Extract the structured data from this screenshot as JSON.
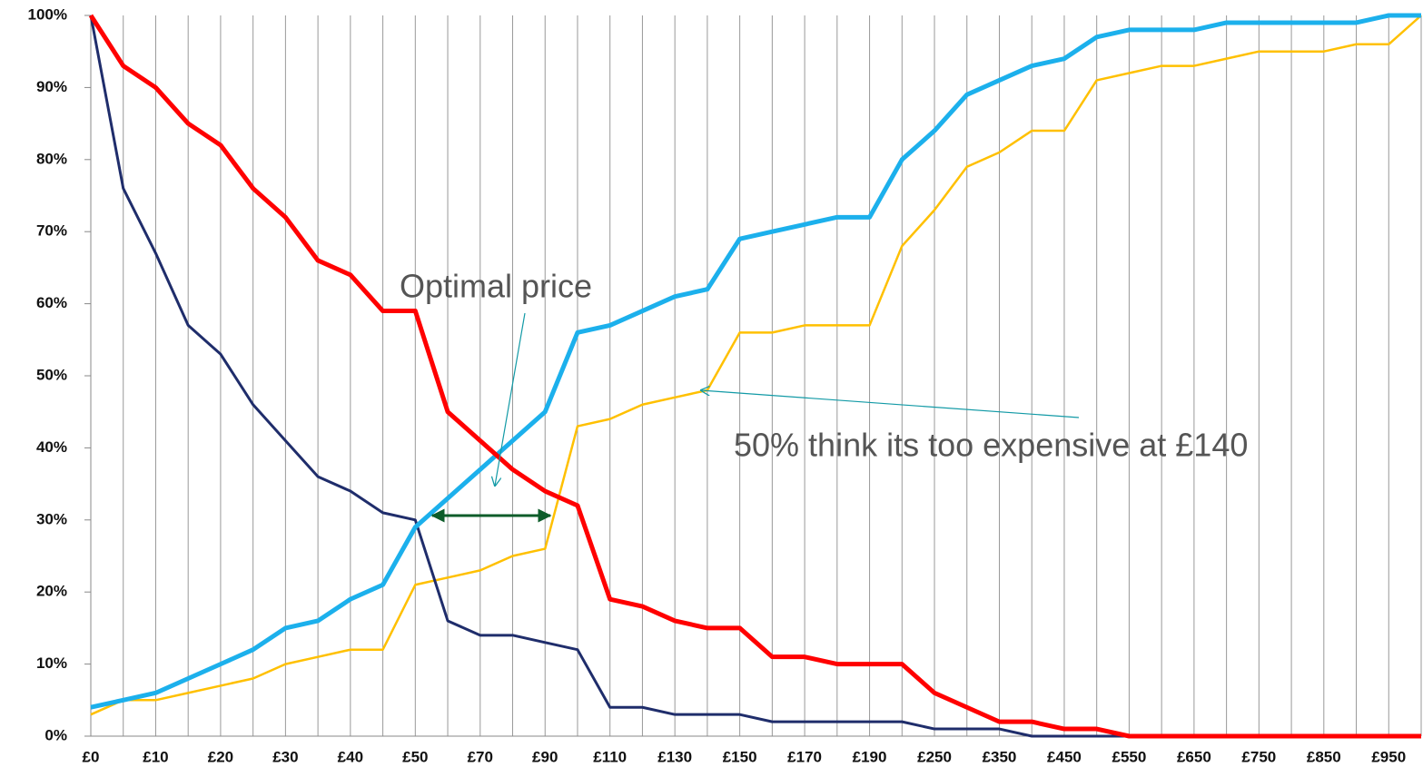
{
  "chart_data": {
    "type": "line",
    "categories": [
      "£0",
      null,
      "£10",
      null,
      "£20",
      null,
      "£30",
      null,
      "£40",
      null,
      "£50",
      null,
      "£70",
      null,
      "£90",
      null,
      "£110",
      null,
      "£130",
      null,
      "£150",
      null,
      "£170",
      null,
      "£190",
      null,
      "£250",
      null,
      "£350",
      null,
      "£450",
      null,
      "£550",
      null,
      "£650",
      null,
      "£750",
      null,
      "£850",
      null,
      "£950",
      null
    ],
    "series": [
      {
        "color": "#ffc000",
        "values": [
          3,
          5,
          5,
          6,
          7,
          8,
          10,
          11,
          12,
          12,
          21,
          22,
          23,
          25,
          26,
          43,
          44,
          46,
          47,
          48,
          56,
          56,
          57,
          57,
          57,
          68,
          73,
          79,
          81,
          84,
          84,
          91,
          92,
          93,
          93,
          94,
          95,
          95,
          95,
          96,
          96,
          100
        ]
      },
      {
        "color": "#1f2d6b",
        "values": [
          100,
          76,
          67,
          57,
          53,
          46,
          41,
          36,
          34,
          31,
          30,
          16,
          14,
          14,
          13,
          12,
          4,
          4,
          3,
          3,
          3,
          2,
          2,
          2,
          2,
          2,
          1,
          1,
          1,
          0,
          0,
          0,
          0,
          0,
          0,
          0,
          0,
          0,
          0,
          0,
          0,
          0
        ]
      },
      {
        "color": "#1cb0ec",
        "values": [
          4,
          5,
          6,
          8,
          10,
          12,
          15,
          16,
          19,
          21,
          29,
          33,
          37,
          41,
          45,
          56,
          57,
          59,
          61,
          62,
          69,
          70,
          71,
          72,
          72,
          80,
          84,
          89,
          91,
          93,
          94,
          97,
          98,
          98,
          98,
          99,
          99,
          99,
          99,
          99,
          100,
          100
        ]
      },
      {
        "color": "#ff0000",
        "values": [
          100,
          93,
          90,
          85,
          82,
          76,
          72,
          66,
          64,
          59,
          59,
          45,
          41,
          37,
          34,
          32,
          19,
          18,
          16,
          15,
          15,
          11,
          11,
          10,
          10,
          10,
          6,
          4,
          2,
          2,
          1,
          1,
          0,
          0,
          0,
          0,
          0,
          0,
          0,
          0,
          0,
          0
        ]
      }
    ],
    "ylim": [
      0,
      100
    ],
    "yticks": [
      {
        "value": 0,
        "label": "0%"
      },
      {
        "value": 10,
        "label": "10%"
      },
      {
        "value": 20,
        "label": "20%"
      },
      {
        "value": 30,
        "label": "30%"
      },
      {
        "value": 40,
        "label": "40%"
      },
      {
        "value": 50,
        "label": "50%"
      },
      {
        "value": 60,
        "label": "60%"
      },
      {
        "value": 70,
        "label": "70%"
      },
      {
        "value": 80,
        "label": "80%"
      },
      {
        "value": 90,
        "label": "90%"
      },
      {
        "value": 100,
        "label": "100%"
      }
    ],
    "annotations": [
      "Optimal price",
      "50% think its too expensive at £140"
    ]
  }
}
